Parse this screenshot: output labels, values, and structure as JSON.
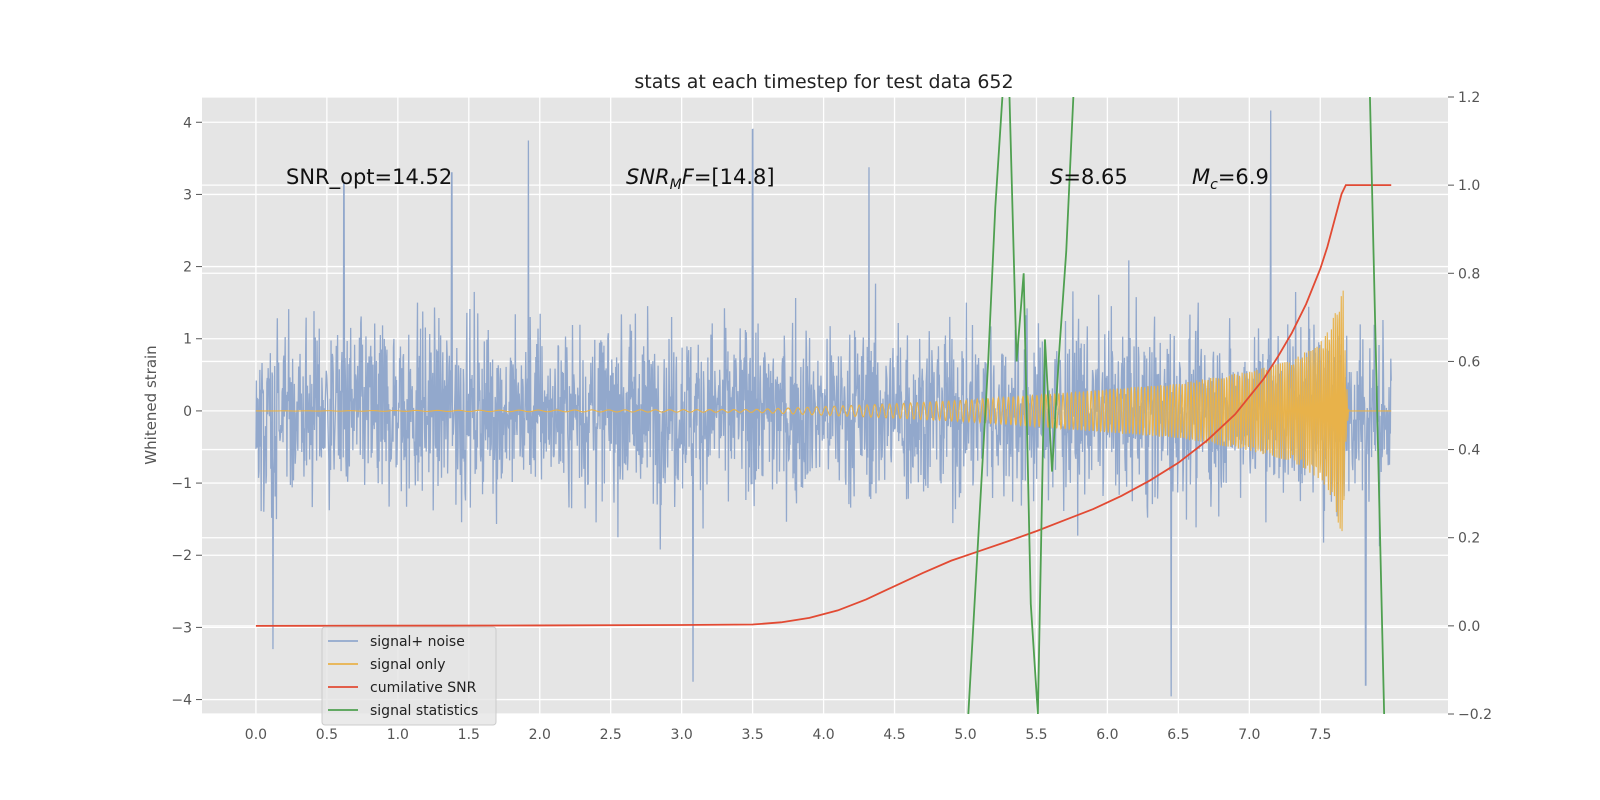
{
  "chart_data": {
    "type": "line",
    "title": "stats at each timestep for test data 652",
    "ylabel": "Whitened strain",
    "xlabel": "",
    "xlim": [
      -0.38,
      8.4
    ],
    "ylim": [
      -4.2,
      4.35
    ],
    "y2lim": [
      -0.2,
      1.2
    ],
    "grid": true,
    "x_ticks": [
      0.0,
      0.5,
      1.0,
      1.5,
      2.0,
      2.5,
      3.0,
      3.5,
      4.0,
      4.5,
      5.0,
      5.5,
      6.0,
      6.5,
      7.0,
      7.5
    ],
    "x_tick_labels": [
      "0.0",
      "0.5",
      "1.0",
      "1.5",
      "2.0",
      "2.5",
      "3.0",
      "3.5",
      "4.0",
      "4.5",
      "5.0",
      "5.5",
      "6.0",
      "6.5",
      "7.0",
      "7.5"
    ],
    "y_ticks": [
      -4,
      -3,
      -2,
      -1,
      0,
      1,
      2,
      3,
      4
    ],
    "y_tick_labels": [
      "−4",
      "−3",
      "−2",
      "−1",
      "0",
      "1",
      "2",
      "3",
      "4"
    ],
    "y2_ticks": [
      -0.2,
      0.0,
      0.2,
      0.4,
      0.6,
      0.8,
      1.0,
      1.2
    ],
    "y2_tick_labels": [
      "−0.2",
      "0.0",
      "0.2",
      "0.4",
      "0.6",
      "0.8",
      "1.0",
      "1.2"
    ],
    "annotations": {
      "snr_opt": "SNR_opt=14.52",
      "snr_mf_main": "SNR",
      "snr_mf_sub": "M",
      "snr_mf_rest": "F=[14.8]",
      "s_main": "S",
      "s_rest": "=8.65",
      "mc_main": "M",
      "mc_sub": "c",
      "mc_rest": "=6.9"
    },
    "series": [
      {
        "name": "signal+ noise",
        "color": "#92a8cc",
        "axis": "left",
        "description_x_range": [
          0.0,
          8.0
        ],
        "envelope_typical": [
          -2.2,
          2.2
        ],
        "notable_peaks": [
          [
            0.12,
            -3.3
          ],
          [
            0.62,
            3.15
          ],
          [
            1.38,
            3.3
          ],
          [
            1.92,
            3.75
          ],
          [
            3.5,
            3.9
          ],
          [
            3.08,
            -3.75
          ],
          [
            4.32,
            3.35
          ],
          [
            6.45,
            -3.85
          ],
          [
            7.15,
            4.0
          ],
          [
            7.82,
            -3.8
          ]
        ]
      },
      {
        "name": "signal only",
        "color": "#e8b24a",
        "axis": "left",
        "x": [
          0.0,
          3.5,
          4.0,
          4.5,
          5.0,
          5.5,
          6.0,
          6.5,
          7.0,
          7.3,
          7.5,
          7.58,
          7.62,
          7.66,
          7.68,
          7.7,
          8.0
        ],
        "amplitude": [
          0.0,
          0.02,
          0.06,
          0.1,
          0.15,
          0.22,
          0.3,
          0.38,
          0.55,
          0.7,
          0.95,
          1.2,
          1.5,
          1.8,
          0.5,
          0.0,
          0.0
        ]
      },
      {
        "name": "cumilative SNR",
        "color": "#e24a33",
        "axis": "right",
        "x": [
          0.0,
          2.0,
          3.0,
          3.5,
          3.7,
          3.9,
          4.1,
          4.3,
          4.5,
          4.7,
          4.9,
          5.1,
          5.3,
          5.5,
          5.7,
          5.9,
          6.1,
          6.3,
          6.5,
          6.7,
          6.9,
          7.1,
          7.2,
          7.3,
          7.4,
          7.5,
          7.55,
          7.6,
          7.65,
          7.68,
          7.7,
          8.0
        ],
        "y": [
          0.0,
          0.001,
          0.002,
          0.003,
          0.008,
          0.018,
          0.035,
          0.06,
          0.09,
          0.12,
          0.148,
          0.17,
          0.192,
          0.215,
          0.24,
          0.265,
          0.295,
          0.33,
          0.37,
          0.42,
          0.48,
          0.56,
          0.61,
          0.665,
          0.73,
          0.81,
          0.86,
          0.92,
          0.98,
          1.0,
          1.0,
          1.0
        ]
      },
      {
        "name": "signal statistics",
        "color": "#4fa050",
        "axis": "right",
        "x": [
          5.02,
          5.16,
          5.21,
          5.26,
          5.31,
          5.36,
          5.41,
          5.46,
          5.51,
          5.56,
          5.61,
          5.66,
          5.71,
          5.76,
          5.83,
          7.85,
          7.95
        ],
        "y": [
          -0.2,
          0.6,
          0.95,
          1.2,
          1.2,
          0.6,
          0.8,
          0.05,
          -0.2,
          0.65,
          0.35,
          0.62,
          0.85,
          1.2,
          1.2,
          1.2,
          -0.2
        ]
      }
    ],
    "legend": {
      "location": "lower-left",
      "entries": [
        {
          "label": "signal+ noise",
          "color": "#92a8cc"
        },
        {
          "label": "signal only",
          "color": "#e8b24a"
        },
        {
          "label": "cumilative SNR",
          "color": "#e24a33"
        },
        {
          "label": "signal statistics",
          "color": "#4fa050"
        }
      ]
    }
  }
}
